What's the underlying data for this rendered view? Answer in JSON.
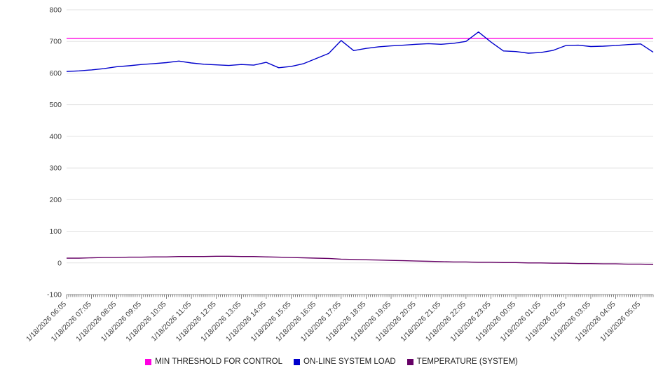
{
  "chart_data": {
    "type": "line",
    "title": "",
    "grid": true,
    "legend_position": "bottom",
    "ylim": [
      -100,
      800
    ],
    "ytick_step": 100,
    "x_interval_minutes": 30,
    "categories": [
      "1/18/2026 06:05",
      "1/18/2026 07:05",
      "1/18/2026 08:05",
      "1/18/2026 09:05",
      "1/18/2026 10:05",
      "1/18/2026 11:05",
      "1/18/2026 12:05",
      "1/18/2026 13:05",
      "1/18/2026 14:05",
      "1/18/2026 15:05",
      "1/18/2026 16:05",
      "1/18/2026 17:05",
      "1/18/2026 18:05",
      "1/18/2026 19:05",
      "1/18/2026 20:05",
      "1/18/2026 21:05",
      "1/18/2026 22:05",
      "1/18/2026 23:05",
      "1/19/2026 00:05",
      "1/19/2026 01:05",
      "1/19/2026 02:05",
      "1/19/2026 03:05",
      "1/19/2026 04:05",
      "1/19/2026 05:05"
    ],
    "series": [
      {
        "name": "MIN THRESHOLD FOR CONTROL",
        "color": "#ff00e1",
        "kind": "threshold",
        "value": 710
      },
      {
        "name": "ON-LINE SYSTEM LOAD",
        "color": "#0000cc",
        "kind": "line",
        "values": [
          605,
          607,
          610,
          614,
          620,
          623,
          627,
          630,
          633,
          638,
          632,
          628,
          626,
          624,
          627,
          625,
          634,
          617,
          621,
          630,
          646,
          662,
          703,
          671,
          678,
          683,
          686,
          688,
          691,
          693,
          691,
          694,
          700,
          730,
          698,
          670,
          668,
          663,
          665,
          672,
          687,
          688,
          684,
          685,
          687,
          690,
          692,
          666
        ]
      },
      {
        "name": "TEMPERATURE (SYSTEM)",
        "color": "#660066",
        "kind": "line",
        "values": [
          15,
          15,
          16,
          17,
          17,
          18,
          18,
          19,
          19,
          20,
          20,
          20,
          21,
          21,
          20,
          20,
          19,
          18,
          17,
          16,
          15,
          14,
          12,
          11,
          10,
          9,
          8,
          7,
          6,
          5,
          4,
          3,
          3,
          2,
          2,
          1,
          1,
          0,
          0,
          -1,
          -1,
          -2,
          -2,
          -3,
          -3,
          -4,
          -4,
          -5
        ]
      }
    ]
  }
}
